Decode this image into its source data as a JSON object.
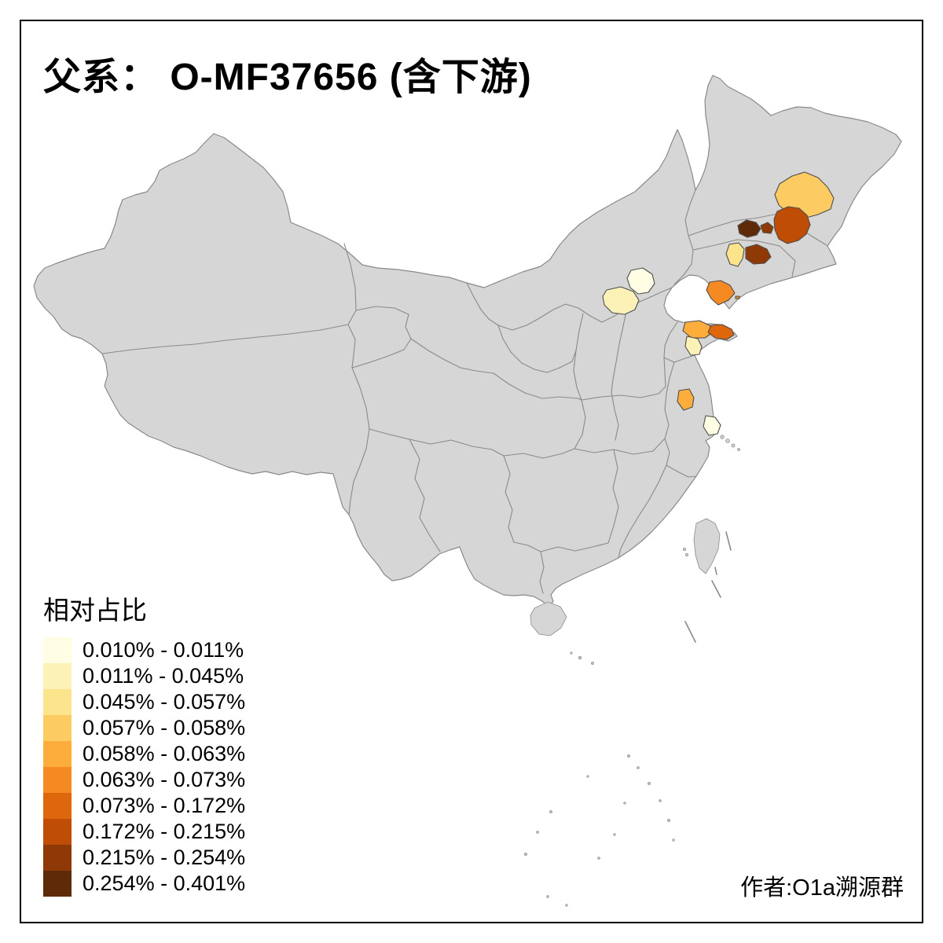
{
  "title": "父系： O-MF37656 (含下游)",
  "credit": "作者:O1a溯源群",
  "legend": {
    "title": "相对占比",
    "items": [
      {
        "range": "0.010% - 0.011%",
        "color": "#FFFEE4"
      },
      {
        "range": "0.011% - 0.045%",
        "color": "#FCF1B6"
      },
      {
        "range": "0.045% - 0.057%",
        "color": "#FBE48C"
      },
      {
        "range": "0.057% - 0.058%",
        "color": "#FCCB62"
      },
      {
        "range": "0.058% - 0.063%",
        "color": "#FCAD3B"
      },
      {
        "range": "0.063% - 0.073%",
        "color": "#F58A22"
      },
      {
        "range": "0.073% - 0.172%",
        "color": "#DE660C"
      },
      {
        "range": "0.172% - 0.215%",
        "color": "#C04D05"
      },
      {
        "range": "0.215% - 0.254%",
        "color": "#8F3A06"
      },
      {
        "range": "0.254% - 0.401%",
        "color": "#5E2A07"
      }
    ]
  },
  "map": {
    "base_fill": "#d6d6d6",
    "border_color": "#8a8a8a",
    "highlight_border_color": "#4d4d4d",
    "background": "#ffffff",
    "frame_color": "#000000",
    "regions": [
      {
        "id": "heilongjiang-central",
        "range": "0.057% - 0.058%",
        "color": "#FCCB62"
      },
      {
        "id": "jilin-changchun-dark",
        "range": "0.254% - 0.401%",
        "color": "#5E2A07"
      },
      {
        "id": "jilin-small-dark",
        "range": "0.215% - 0.254%",
        "color": "#8F3A06"
      },
      {
        "id": "jilin-east",
        "range": "0.172% - 0.215%",
        "color": "#C04D05"
      },
      {
        "id": "liaoning-north-cream",
        "range": "0.045% - 0.057%",
        "color": "#FBE48C"
      },
      {
        "id": "liaoning-east-dark",
        "range": "0.215% - 0.254%",
        "color": "#8F3A06"
      },
      {
        "id": "liaoning-dalian",
        "range": "0.063% - 0.073%",
        "color": "#F58A22"
      },
      {
        "id": "dalian-islet",
        "range": "0.063% - 0.073%",
        "color": "#F58A22"
      },
      {
        "id": "beijing",
        "range": "0.010% - 0.011%",
        "color": "#FFFEE4"
      },
      {
        "id": "hebei-central",
        "range": "0.011% - 0.045%",
        "color": "#FCF1B6"
      },
      {
        "id": "shandong-north",
        "range": "0.058% - 0.063%",
        "color": "#FCAD3B"
      },
      {
        "id": "shandong-peninsula-east",
        "range": "0.073% - 0.172%",
        "color": "#DE660C"
      },
      {
        "id": "shandong-south-cream",
        "range": "0.011% - 0.045%",
        "color": "#FCF1B6"
      },
      {
        "id": "jiangsu-central",
        "range": "0.058% - 0.063%",
        "color": "#FCAD3B"
      },
      {
        "id": "shanghai-area",
        "range": "0.010% - 0.011%",
        "color": "#FFFEE4"
      }
    ]
  }
}
